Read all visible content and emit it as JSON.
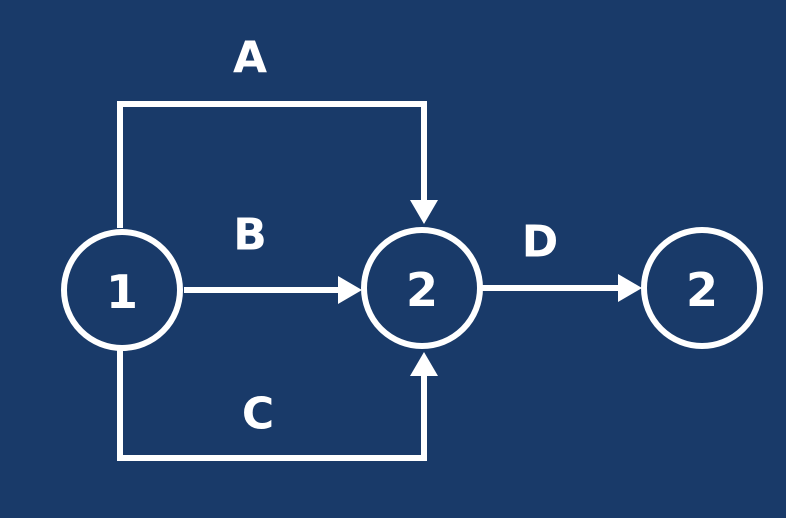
{
  "diagram": {
    "nodes": [
      {
        "id": "n1",
        "label": "1"
      },
      {
        "id": "n2",
        "label": "2"
      },
      {
        "id": "n3",
        "label": "2"
      }
    ],
    "edges": [
      {
        "id": "A",
        "label": "A",
        "from": "n1",
        "to": "n2"
      },
      {
        "id": "B",
        "label": "B",
        "from": "n1",
        "to": "n2"
      },
      {
        "id": "C",
        "label": "C",
        "from": "n1",
        "to": "n2"
      },
      {
        "id": "D",
        "label": "D",
        "from": "n2",
        "to": "n3"
      }
    ]
  },
  "colors": {
    "background": "#193a69",
    "foreground": "#ffffff"
  }
}
